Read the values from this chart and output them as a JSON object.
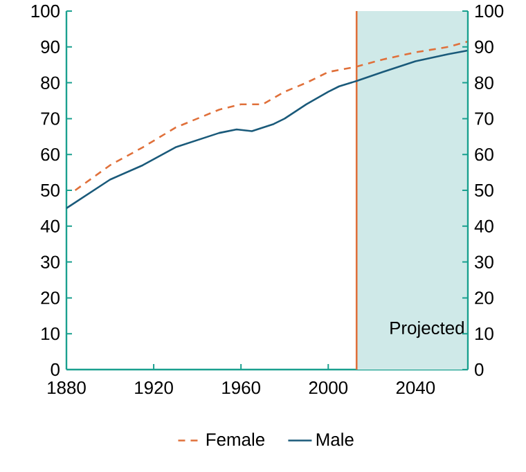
{
  "chart_data": {
    "type": "line",
    "series": [
      {
        "name": "Female",
        "color": "#e0703a",
        "line_style": "dashed",
        "x": [
          1884,
          1900,
          1915,
          1930,
          1950,
          1960,
          1970,
          1980,
          1990,
          2000,
          2013,
          2025,
          2040,
          2055,
          2064
        ],
        "values": [
          50,
          57,
          62,
          67.5,
          72.5,
          74,
          74,
          77.5,
          80,
          83,
          84.5,
          86.5,
          88.5,
          90,
          91.5
        ]
      },
      {
        "name": "Male",
        "color": "#1a5a7a",
        "line_style": "solid",
        "x": [
          1880,
          1890,
          1900,
          1915,
          1930,
          1950,
          1958,
          1965,
          1975,
          1980,
          1990,
          2000,
          2005,
          2013,
          2025,
          2040,
          2055,
          2064
        ],
        "values": [
          45,
          49,
          53,
          57,
          62,
          66,
          67,
          66.5,
          68.5,
          70,
          74,
          77.5,
          79,
          80.5,
          83,
          86,
          88,
          89
        ]
      }
    ],
    "xlim": [
      1880,
      2064
    ],
    "xticks": [
      1880,
      1920,
      1960,
      2000,
      2040
    ],
    "ylim": [
      0,
      100
    ],
    "yticks": [
      0,
      10,
      20,
      30,
      40,
      50,
      60,
      70,
      80,
      90,
      100
    ],
    "y2lim": [
      0,
      100
    ],
    "y2ticks": [
      0,
      10,
      20,
      30,
      40,
      50,
      60,
      70,
      80,
      90,
      100
    ],
    "ref_lines": [
      {
        "axis": "x",
        "value": 2013,
        "color": "#e0703a"
      }
    ],
    "bands": [
      {
        "axis": "x",
        "from": 2013,
        "to": 2064,
        "label": "Projected",
        "color": "#cfe9e8"
      }
    ],
    "legend": "bottom",
    "grid": false
  }
}
